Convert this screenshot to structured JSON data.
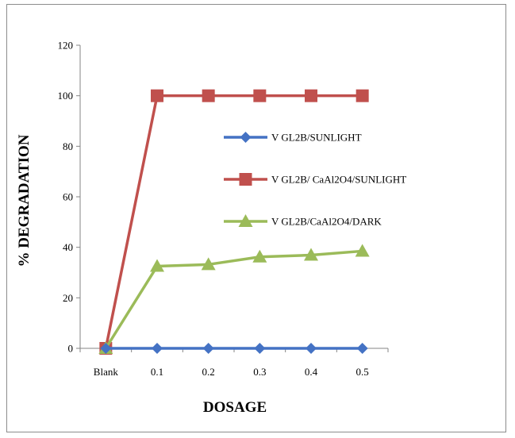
{
  "chart_data": {
    "type": "line",
    "title": "",
    "xlabel": "DOSAGE",
    "ylabel": "% DEGRADATION",
    "categories": [
      "Blank",
      "0.1",
      "0.2",
      "0.3",
      "0.4",
      "0.5"
    ],
    "ylim": [
      0,
      120
    ],
    "yticks": [
      "0",
      "20",
      "40",
      "60",
      "80",
      "100",
      "120"
    ],
    "grid": false,
    "legend_position": "right, inside plot",
    "series": [
      {
        "name": "V GL2B/SUNLIGHT",
        "color": "#4472C4",
        "marker": "diamond",
        "values": [
          0,
          0,
          0,
          0,
          0,
          0
        ]
      },
      {
        "name": "V GL2B/ CaAl2O4/SUNLIGHT",
        "color": "#C0504D",
        "marker": "square",
        "values": [
          0,
          100,
          100,
          100,
          100,
          100
        ]
      },
      {
        "name": "V GL2B/CaAl2O4/DARK",
        "color": "#9BBB59",
        "marker": "triangle",
        "values": [
          0,
          32.5,
          33.2,
          36.2,
          36.9,
          38.5
        ]
      }
    ]
  }
}
